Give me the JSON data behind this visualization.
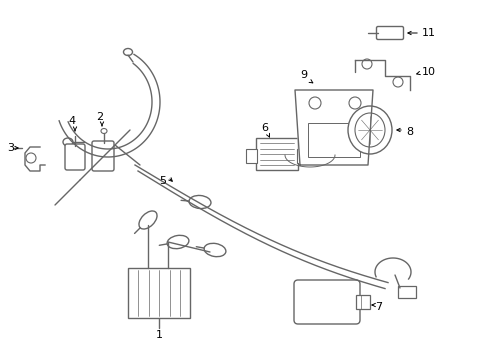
{
  "background_color": "#ffffff",
  "line_color": "#666666",
  "text_color": "#000000",
  "figure_width": 4.9,
  "figure_height": 3.6,
  "dpi": 100,
  "lw": 1.0
}
